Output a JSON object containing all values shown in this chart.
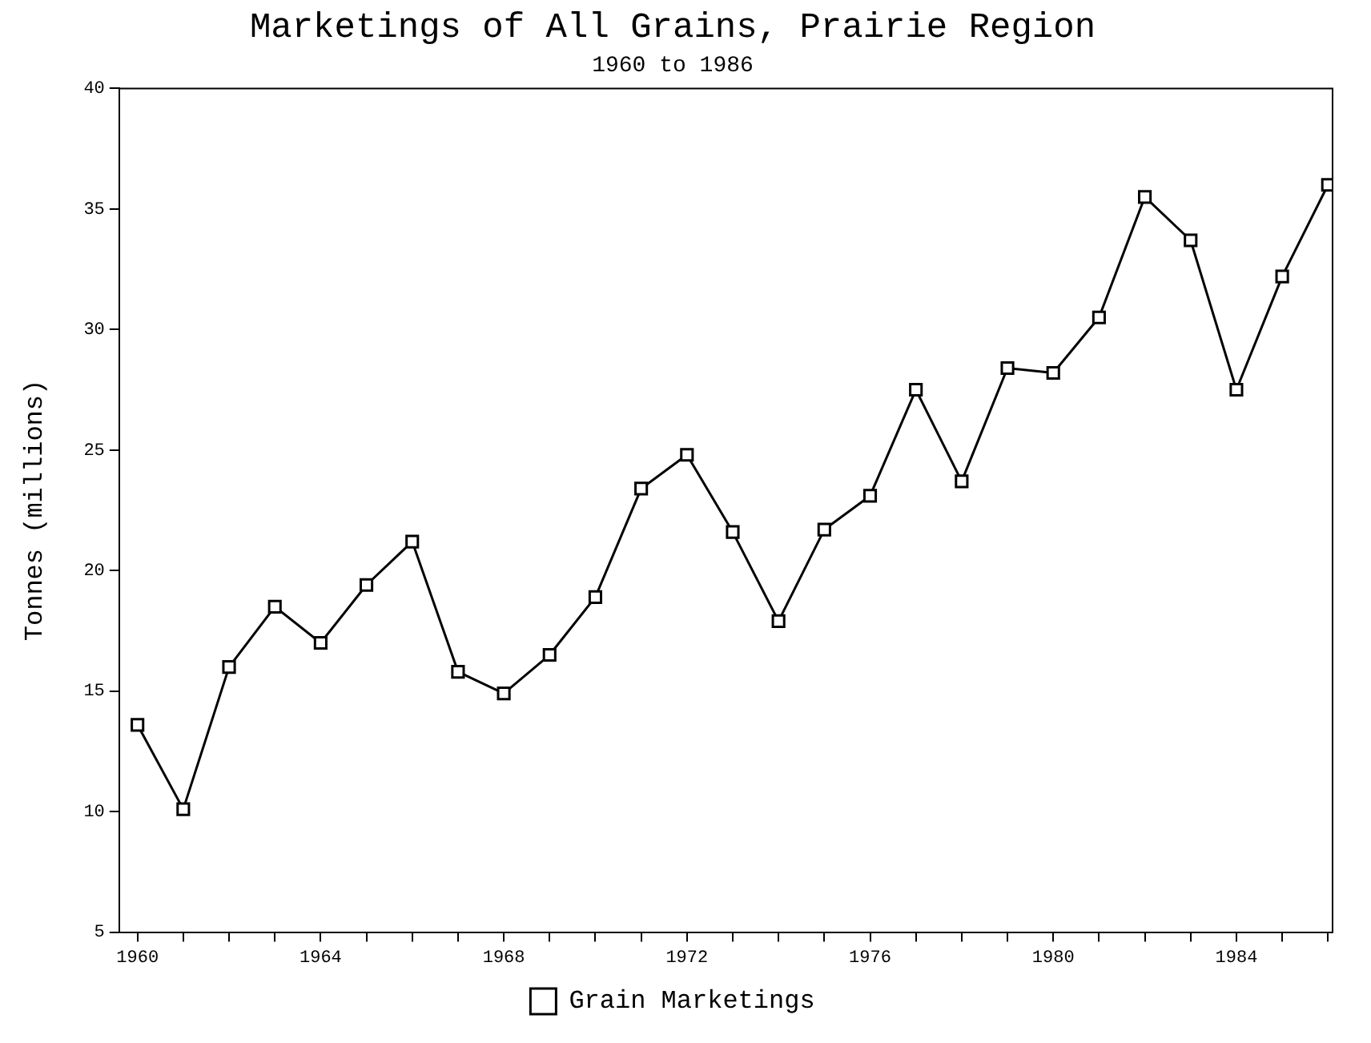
{
  "chart_data": {
    "type": "line",
    "title": "Marketings of All Grains, Prairie Region",
    "subtitle": "1960 to 1986",
    "ylabel": "Tonnes (millions)",
    "x": [
      1960,
      1961,
      1962,
      1963,
      1964,
      1965,
      1966,
      1967,
      1968,
      1969,
      1970,
      1971,
      1972,
      1973,
      1974,
      1975,
      1976,
      1977,
      1978,
      1979,
      1980,
      1981,
      1982,
      1983,
      1984,
      1985,
      1986
    ],
    "series": [
      {
        "name": "Grain Marketings",
        "color": "#000000",
        "values": [
          13.6,
          10.1,
          16.0,
          18.5,
          17.0,
          19.4,
          21.2,
          15.8,
          14.9,
          16.5,
          18.9,
          23.4,
          24.8,
          21.6,
          17.9,
          21.7,
          23.1,
          27.5,
          23.7,
          28.4,
          28.2,
          30.5,
          35.5,
          33.7,
          27.5,
          32.2,
          36.0
        ]
      }
    ],
    "xlim": [
      1959.6,
      1986.1
    ],
    "xticks": [
      1960,
      {
        "value": 1961,
        "label": null
      },
      {
        "value": 1962,
        "label": null
      },
      {
        "value": 1963,
        "label": null
      },
      1964,
      {
        "value": 1965,
        "label": null
      },
      {
        "value": 1966,
        "label": null
      },
      {
        "value": 1967,
        "label": null
      },
      1968,
      {
        "value": 1969,
        "label": null
      },
      {
        "value": 1970,
        "label": null
      },
      {
        "value": 1971,
        "label": null
      },
      1972,
      {
        "value": 1973,
        "label": null
      },
      {
        "value": 1974,
        "label": null
      },
      {
        "value": 1975,
        "label": null
      },
      1976,
      {
        "value": 1977,
        "label": null
      },
      {
        "value": 1978,
        "label": null
      },
      {
        "value": 1979,
        "label": null
      },
      1980,
      {
        "value": 1981,
        "label": null
      },
      {
        "value": 1982,
        "label": null
      },
      {
        "value": 1983,
        "label": null
      },
      1984,
      {
        "value": 1985,
        "label": null
      },
      {
        "value": 1986,
        "label": null
      }
    ],
    "ylim": [
      5,
      40
    ],
    "yticks": [
      5,
      10,
      15,
      20,
      25,
      30,
      35,
      40
    ],
    "grid": false,
    "legend": "bottom",
    "marker": "square",
    "line_style": "solid"
  }
}
